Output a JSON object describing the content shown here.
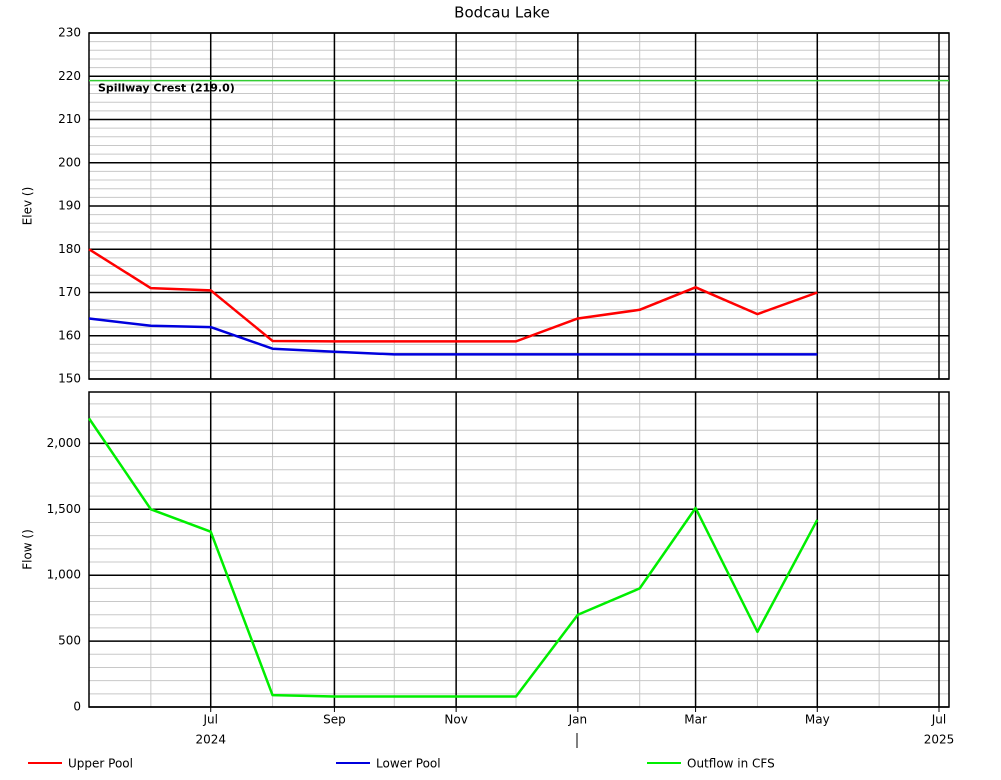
{
  "chart_data": [
    {
      "type": "line",
      "title": "Bodcau Lake",
      "y_label": "Elev ()",
      "x": [
        "2024-05",
        "2024-06",
        "2024-07",
        "2024-08",
        "2024-09",
        "2024-10",
        "2024-11",
        "2024-12",
        "2025-01",
        "2025-02",
        "2025-03",
        "2025-04",
        "2025-05"
      ],
      "xlim": [
        "2024-05",
        "2025-07"
      ],
      "xticks": [
        {
          "value": "2024-07",
          "label": "Jul"
        },
        {
          "value": "2024-09",
          "label": "Sep"
        },
        {
          "value": "2024-11",
          "label": "Nov"
        },
        {
          "value": "2025-01",
          "label": "Jan"
        },
        {
          "value": "2025-03",
          "label": "Mar"
        },
        {
          "value": "2025-05",
          "label": "May"
        },
        {
          "value": "2025-07",
          "label": "Jul"
        }
      ],
      "year_labels": [
        {
          "value": "2024-07",
          "label": "2024"
        },
        {
          "value": "2025-07",
          "label": "2025"
        }
      ],
      "ylim": [
        150,
        230
      ],
      "yticks": [
        150,
        160,
        170,
        180,
        190,
        200,
        210,
        220,
        230
      ],
      "minor_grid_step": 2,
      "grid": true,
      "series": [
        {
          "name": "Upper Pool",
          "color": "#ff0000",
          "values": [
            180,
            171,
            170.5,
            158.8,
            158.7,
            158.7,
            158.7,
            158.7,
            164,
            166,
            171.2,
            165,
            170
          ]
        },
        {
          "name": "Lower Pool",
          "color": "#0000dd",
          "values": [
            164,
            162.3,
            162,
            157,
            156.3,
            155.7,
            155.7,
            155.7,
            155.7,
            155.7,
            155.7,
            155.7,
            155.7
          ]
        }
      ],
      "reference_line": {
        "label": "Spillway Crest (219.0)",
        "value": 219,
        "color": "#33cc33"
      }
    },
    {
      "type": "line",
      "y_label": "Flow ()",
      "x": [
        "2024-05",
        "2024-06",
        "2024-07",
        "2024-08",
        "2024-09",
        "2024-10",
        "2024-11",
        "2024-12",
        "2025-01",
        "2025-02",
        "2025-03",
        "2025-04",
        "2025-05"
      ],
      "xlim": [
        "2024-05",
        "2025-07"
      ],
      "ylim": [
        0,
        2390
      ],
      "yticks": [
        0,
        500,
        {
          "value": 1000,
          "label": "1,000"
        },
        {
          "value": 1500,
          "label": "1,500"
        },
        {
          "value": 2000,
          "label": "2,000"
        }
      ],
      "minor_grid_step": 100,
      "grid": true,
      "series": [
        {
          "name": "Outflow in CFS",
          "color": "#00ee00",
          "values": [
            2190,
            1500,
            1330,
            90,
            80,
            80,
            80,
            80,
            700,
            900,
            1510,
            570,
            1420
          ]
        }
      ]
    }
  ]
}
